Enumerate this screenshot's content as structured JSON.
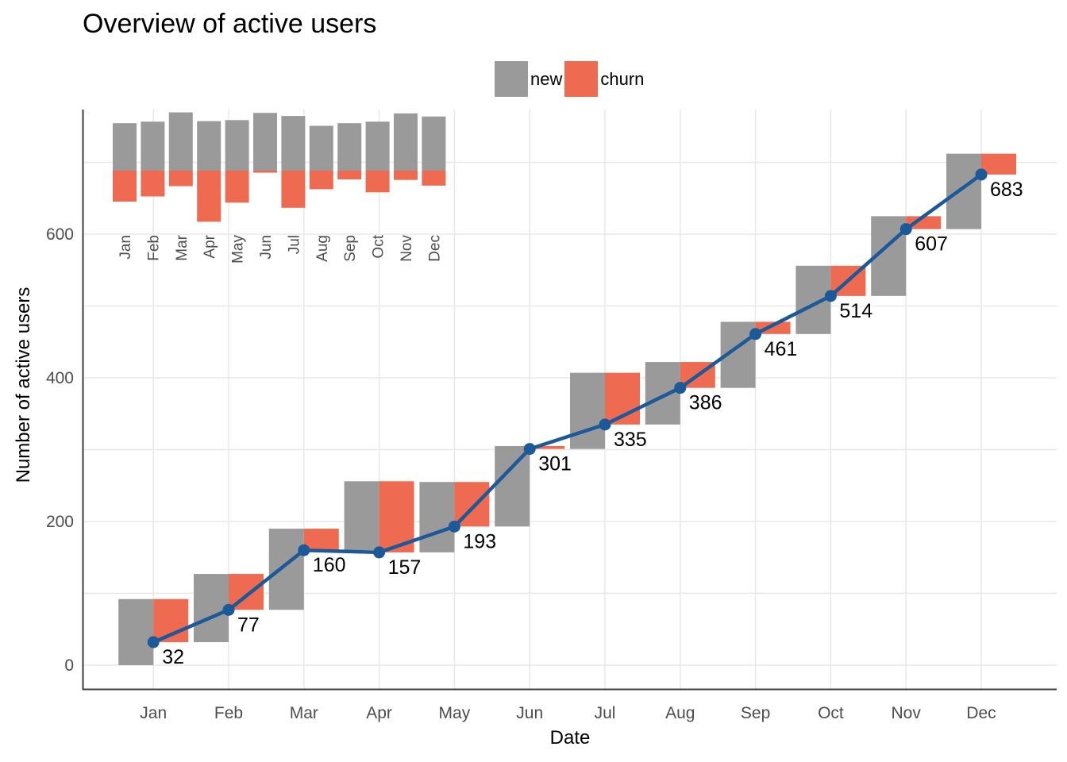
{
  "title": "Overview of active users",
  "legend": {
    "items": [
      {
        "label": "new",
        "color": "#9A9A9A"
      },
      {
        "label": "churn",
        "color": "#EE6A50"
      }
    ]
  },
  "axes": {
    "x_title": "Date",
    "y_title": "Number of active users"
  },
  "colors": {
    "bar_new": "#9A9A9A",
    "bar_churn": "#EE6A50",
    "line": "#1C5998",
    "gridline": "#E8E8E8",
    "axis_line": "#3D3D3D",
    "tick_label": "#4D4D4D",
    "value_label": "#000000"
  },
  "chart_data": {
    "type": "bar",
    "subtype": "waterfall bars with cumulative line and diverging-bar inset",
    "title": "Overview of active users",
    "xlabel": "Date",
    "ylabel": "Number of active users",
    "categories": [
      "Jan",
      "Feb",
      "Mar",
      "Apr",
      "May",
      "Jun",
      "Jul",
      "Aug",
      "Sep",
      "Oct",
      "Nov",
      "Dec"
    ],
    "series": [
      {
        "name": "active users",
        "type": "line",
        "color": "#1C5998",
        "values": [
          32,
          77,
          160,
          157,
          193,
          301,
          335,
          386,
          461,
          514,
          607,
          683
        ]
      },
      {
        "name": "new",
        "type": "bar",
        "color": "#9A9A9A",
        "values": [
          92,
          95,
          113,
          96,
          98,
          112,
          106,
          87,
          92,
          95,
          111,
          105
        ]
      },
      {
        "name": "churn",
        "type": "bar",
        "color": "#EE6A50",
        "values": [
          60,
          50,
          30,
          99,
          62,
          4,
          72,
          36,
          17,
          42,
          18,
          29
        ]
      }
    ],
    "point_labels": [
      "32",
      "77",
      "160",
      "157",
      "193",
      "301",
      "335",
      "386",
      "461",
      "514",
      "607",
      "683"
    ],
    "bar_semantics": "gray 'new' bar rises from previous month's total; red 'churn' bar drops from that peak down to the new total; inset repeats new (up) vs churn (down) per month",
    "y_axis": {
      "ticks": [
        "0",
        "200",
        "400",
        "600"
      ],
      "tick_values": [
        0,
        200,
        400,
        600
      ],
      "gridlines": [
        0,
        100,
        200,
        300,
        400,
        500,
        600,
        700
      ],
      "range": [
        0,
        775
      ]
    },
    "legend_position": "top",
    "grid": "on",
    "inset": {
      "type": "diverging bar",
      "up_series": "new",
      "down_series": "churn",
      "categories": [
        "Jan",
        "Feb",
        "Mar",
        "Apr",
        "May",
        "Jun",
        "Jul",
        "Aug",
        "Sep",
        "Oct",
        "Nov",
        "Dec"
      ]
    }
  }
}
